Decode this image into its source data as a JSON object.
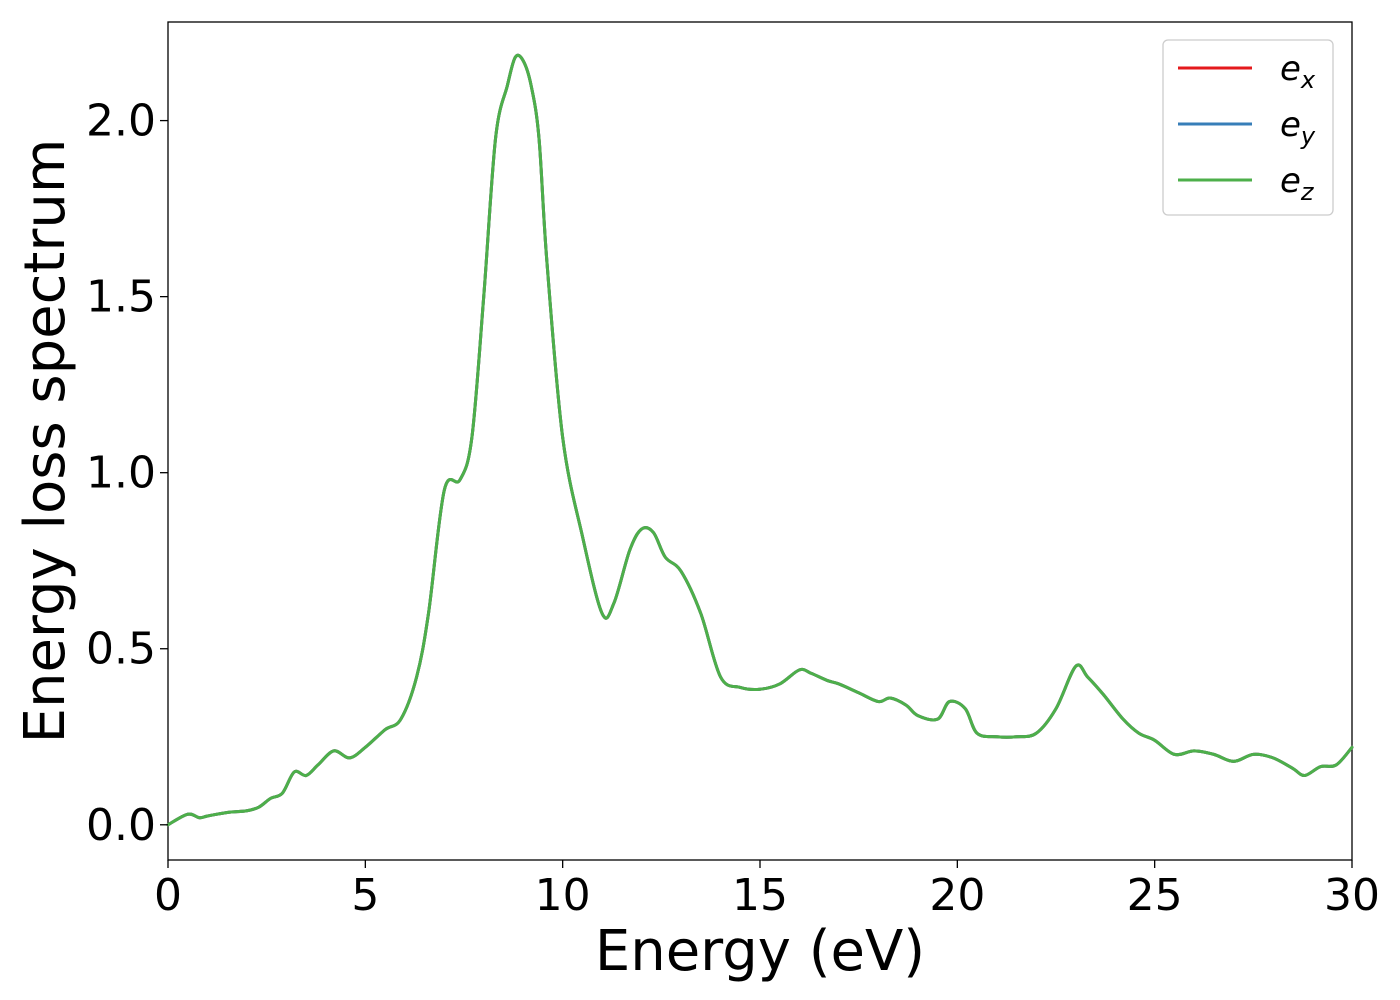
{
  "chart_data": {
    "type": "line",
    "title": "",
    "xlabel": "Energy (eV)",
    "ylabel": "Energy loss spectrum",
    "xlim": [
      0,
      30
    ],
    "ylim": [
      -0.1,
      2.28
    ],
    "xticks": [
      0,
      5,
      10,
      15,
      20,
      25,
      30
    ],
    "xtick_labels": [
      "0",
      "5",
      "10",
      "15",
      "20",
      "25",
      "30"
    ],
    "yticks": [
      0.0,
      0.5,
      1.0,
      1.5,
      2.0
    ],
    "ytick_labels": [
      "0.0",
      "0.5",
      "1.0",
      "1.5",
      "2.0"
    ],
    "grid": false,
    "legend_position": "top-right",
    "series": [
      {
        "name": "e_x",
        "legend_base": "e",
        "legend_sub": "x",
        "color": "#e41a1c"
      },
      {
        "name": "e_y",
        "legend_base": "e",
        "legend_sub": "y",
        "color": "#377eb8"
      },
      {
        "name": "e_z",
        "legend_base": "e",
        "legend_sub": "z",
        "color": "#4daf4a"
      }
    ],
    "x": [
      0,
      0.5,
      0.8,
      1.0,
      1.5,
      2.0,
      2.3,
      2.6,
      2.9,
      3.2,
      3.5,
      3.8,
      4.2,
      4.6,
      5.0,
      5.5,
      5.9,
      6.3,
      6.6,
      7.0,
      7.4,
      7.7,
      8.0,
      8.3,
      8.6,
      8.8,
      9.0,
      9.2,
      9.4,
      9.6,
      10.0,
      10.5,
      11.0,
      11.3,
      11.7,
      12.0,
      12.3,
      12.6,
      13.0,
      13.5,
      14.0,
      14.5,
      15.0,
      15.5,
      16.0,
      16.3,
      16.7,
      17.0,
      17.5,
      18.0,
      18.3,
      18.7,
      19.0,
      19.5,
      19.8,
      20.2,
      20.5,
      21.0,
      21.5,
      22.0,
      22.5,
      23.0,
      23.3,
      23.7,
      24.2,
      24.6,
      25.0,
      25.5,
      26.0,
      26.5,
      27.0,
      27.5,
      28.0,
      28.5,
      28.8,
      29.2,
      29.6,
      30.0
    ],
    "values": [
      0.0,
      0.03,
      0.02,
      0.025,
      0.035,
      0.04,
      0.05,
      0.075,
      0.09,
      0.15,
      0.14,
      0.17,
      0.21,
      0.19,
      0.22,
      0.27,
      0.3,
      0.42,
      0.6,
      0.95,
      0.98,
      1.1,
      1.5,
      1.95,
      2.1,
      2.18,
      2.17,
      2.1,
      1.95,
      1.6,
      1.1,
      0.82,
      0.6,
      0.63,
      0.78,
      0.84,
      0.83,
      0.76,
      0.72,
      0.6,
      0.42,
      0.39,
      0.385,
      0.4,
      0.44,
      0.43,
      0.41,
      0.4,
      0.375,
      0.35,
      0.36,
      0.34,
      0.31,
      0.3,
      0.35,
      0.33,
      0.26,
      0.25,
      0.25,
      0.26,
      0.33,
      0.45,
      0.42,
      0.37,
      0.3,
      0.26,
      0.24,
      0.2,
      0.21,
      0.2,
      0.18,
      0.2,
      0.19,
      0.16,
      0.14,
      0.165,
      0.17,
      0.22
    ]
  }
}
